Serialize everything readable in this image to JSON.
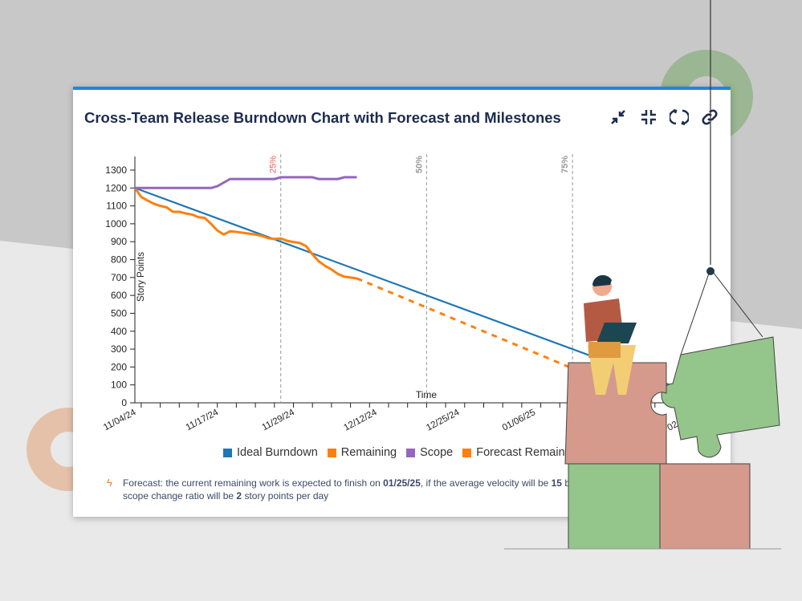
{
  "title": "Cross-Team Release Burndown Chart with Forecast and Milestones",
  "toolbar": [
    {
      "icon": "collapse-icon"
    },
    {
      "icon": "exit-fullscreen-icon"
    },
    {
      "icon": "refresh-icon"
    },
    {
      "icon": "link-icon"
    }
  ],
  "colors": {
    "ideal": "#1f77b4",
    "remaining": "#ff7f0e",
    "scope": "#9467bd",
    "forecast": "#ff7f0e",
    "accent": "#1f84e8",
    "milestone25": "#f05a5a",
    "milestone": "#999999"
  },
  "chart_data": {
    "type": "line",
    "title": "Cross-Team Release Burndown Chart with Forecast and Milestones",
    "xlabel": "Time",
    "ylabel": "Story Points",
    "ylim": [
      0,
      1350
    ],
    "yticks": [
      0,
      100,
      200,
      300,
      400,
      500,
      600,
      700,
      800,
      900,
      1000,
      1100,
      1200,
      1300
    ],
    "xtick_labels": [
      "11/04/24",
      "11/17/24",
      "11/29/24",
      "12/12/24",
      "12/25/24",
      "01/06/25",
      "02/01/25"
    ],
    "xlim": [
      "11/04/24",
      "02/08/25"
    ],
    "grid": false,
    "legend_placement": "bottom",
    "milestones": [
      {
        "label": "25%",
        "date": "11/27/24"
      },
      {
        "label": "50%",
        "date": "12/20/24"
      },
      {
        "label": "75%",
        "date": "01/12/25"
      }
    ],
    "series": [
      {
        "name": "Ideal Burndown",
        "style": "solid",
        "points": [
          [
            "11/04/24",
            1200
          ],
          [
            "02/04/25",
            0
          ]
        ]
      },
      {
        "name": "Remaining",
        "style": "solid",
        "points": [
          [
            "11/04/24",
            1200
          ],
          [
            "11/05/24",
            1150
          ],
          [
            "11/06/24",
            1130
          ],
          [
            "11/07/24",
            1112
          ],
          [
            "11/08/24",
            1100
          ],
          [
            "11/09/24",
            1092
          ],
          [
            "11/10/24",
            1067
          ],
          [
            "11/11/24",
            1067
          ],
          [
            "11/12/24",
            1058
          ],
          [
            "11/13/24",
            1052
          ],
          [
            "11/14/24",
            1037
          ],
          [
            "11/15/24",
            1033
          ],
          [
            "11/16/24",
            1000
          ],
          [
            "11/17/24",
            963
          ],
          [
            "11/18/24",
            940
          ],
          [
            "11/19/24",
            958
          ],
          [
            "11/20/24",
            955
          ],
          [
            "11/21/24",
            950
          ],
          [
            "11/22/24",
            945
          ],
          [
            "11/23/24",
            940
          ],
          [
            "11/24/24",
            933
          ],
          [
            "11/25/24",
            920
          ],
          [
            "11/26/24",
            915
          ],
          [
            "11/27/24",
            918
          ],
          [
            "11/28/24",
            905
          ],
          [
            "11/29/24",
            898
          ],
          [
            "11/30/24",
            893
          ],
          [
            "12/01/24",
            875
          ],
          [
            "12/02/24",
            830
          ],
          [
            "12/03/24",
            790
          ],
          [
            "12/04/24",
            765
          ],
          [
            "12/05/24",
            745
          ],
          [
            "12/06/24",
            720
          ],
          [
            "12/07/24",
            705
          ],
          [
            "12/08/24",
            700
          ],
          [
            "12/09/24",
            695
          ]
        ]
      },
      {
        "name": "Scope",
        "style": "solid",
        "points": [
          [
            "11/04/24",
            1200
          ],
          [
            "11/16/24",
            1200
          ],
          [
            "11/17/24",
            1210
          ],
          [
            "11/19/24",
            1250
          ],
          [
            "11/26/24",
            1250
          ],
          [
            "11/27/24",
            1260
          ],
          [
            "12/02/24",
            1260
          ],
          [
            "12/03/24",
            1250
          ],
          [
            "12/06/24",
            1250
          ],
          [
            "12/07/24",
            1260
          ],
          [
            "12/09/24",
            1260
          ]
        ]
      },
      {
        "name": "Forecast Remaining",
        "style": "dashed",
        "points": [
          [
            "12/09/24",
            695
          ],
          [
            "01/25/25",
            0
          ]
        ]
      }
    ]
  },
  "legend": [
    "Ideal Burndown",
    "Remaining",
    "Scope",
    "Forecast Remaining"
  ],
  "note": {
    "p1": "Forecast: the current remaining work is expected to finish on ",
    "date": "01/25/25",
    "p2": ", if the average velocity will be ",
    "velocity": "15",
    "p3": " burned story points per day and the scope change ratio will be ",
    "ratio": "2",
    "p4": " story points per day"
  }
}
